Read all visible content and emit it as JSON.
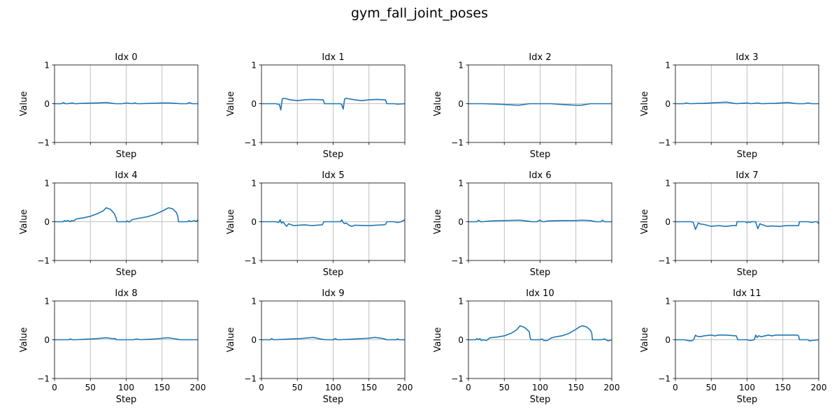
{
  "figure_title": "gym_fall_joint_poses",
  "chart_data": {
    "type": "line",
    "title": "gym_fall_joint_poses",
    "line_color": "#1f77b4",
    "grid_color": "#b0b0b0",
    "grid": "x-only",
    "xlim": [
      0,
      200
    ],
    "ylim": [
      -1,
      1
    ],
    "xticks": [
      0,
      50,
      100,
      150,
      200
    ],
    "yticks": [
      -1,
      0,
      1
    ],
    "rows": 3,
    "cols": 4,
    "panels": [
      {
        "title": "Idx 0",
        "xlabel": "Step",
        "ylabel": "Value",
        "show_xticklabels": false,
        "x": [
          0,
          10,
          12,
          15,
          18,
          22,
          25,
          28,
          30,
          40,
          60,
          72,
          85,
          95,
          100,
          108,
          112,
          115,
          120,
          150,
          160,
          175,
          185,
          188,
          192,
          195,
          200
        ],
        "y": [
          0,
          0,
          0.03,
          0,
          0,
          0.01,
          0.02,
          0,
          0,
          0.01,
          0.02,
          0.03,
          0,
          0,
          0.02,
          0,
          0.02,
          0,
          0,
          0.02,
          0.02,
          0,
          0,
          0.03,
          0,
          0,
          0
        ]
      },
      {
        "title": "Idx 1",
        "xlabel": "Step",
        "ylabel": "Value",
        "show_xticklabels": false,
        "x": [
          0,
          20,
          25,
          27,
          29,
          32,
          40,
          50,
          60,
          70,
          86,
          88,
          95,
          110,
          112,
          114,
          116,
          118,
          130,
          140,
          150,
          160,
          173,
          175,
          185,
          190,
          200
        ],
        "y": [
          0,
          0,
          -0.02,
          -0.16,
          0.13,
          0.14,
          0.1,
          0.08,
          0.1,
          0.11,
          0.1,
          0,
          0,
          0,
          -0.02,
          -0.14,
          0.12,
          0.14,
          0.1,
          0.08,
          0.1,
          0.11,
          0.1,
          0,
          0,
          -0.01,
          0
        ]
      },
      {
        "title": "Idx 2",
        "xlabel": "Step",
        "ylabel": "Value",
        "show_xticklabels": false,
        "x": [
          0,
          20,
          40,
          60,
          70,
          85,
          90,
          100,
          115,
          130,
          150,
          157,
          170,
          175,
          200
        ],
        "y": [
          0,
          0,
          -0.01,
          -0.03,
          -0.04,
          0,
          0,
          0,
          0,
          -0.02,
          -0.04,
          -0.04,
          0,
          0,
          0
        ]
      },
      {
        "title": "Idx 3",
        "xlabel": "Step",
        "ylabel": "Value",
        "show_xticklabels": false,
        "x": [
          0,
          12,
          15,
          20,
          40,
          60,
          72,
          85,
          100,
          105,
          115,
          120,
          140,
          157,
          170,
          180,
          185,
          190,
          200
        ],
        "y": [
          0,
          0,
          0.02,
          0,
          0.01,
          0.03,
          0.04,
          0,
          0.02,
          0,
          0.02,
          0,
          0.01,
          0.03,
          0,
          0,
          0.02,
          0,
          0
        ]
      },
      {
        "title": "Idx 4",
        "xlabel": "Step",
        "ylabel": "Value",
        "show_xticklabels": false,
        "x": [
          0,
          12,
          14,
          16,
          18,
          20,
          22,
          24,
          27,
          30,
          33,
          40,
          50,
          60,
          68,
          72,
          78,
          83,
          86,
          87,
          100,
          102,
          104,
          108,
          112,
          118,
          130,
          140,
          150,
          155,
          159,
          165,
          170,
          172,
          173,
          180,
          185,
          188,
          190,
          195,
          198,
          200
        ],
        "y": [
          0,
          0,
          0.03,
          0.01,
          0.03,
          0.02,
          0,
          0.03,
          0.02,
          0.07,
          0.08,
          0.1,
          0.14,
          0.21,
          0.28,
          0.36,
          0.32,
          0.22,
          0.1,
          0,
          0,
          0.02,
          -0.01,
          0.05,
          0.07,
          0.09,
          0.13,
          0.19,
          0.27,
          0.32,
          0.36,
          0.33,
          0.24,
          0.14,
          0,
          0,
          0,
          0.03,
          0,
          0.03,
          0,
          0.05
        ]
      },
      {
        "title": "Idx 5",
        "xlabel": "Step",
        "ylabel": "Value",
        "show_xticklabels": false,
        "x": [
          0,
          20,
          24,
          26,
          28,
          30,
          32,
          35,
          38,
          40,
          45,
          60,
          70,
          85,
          87,
          100,
          110,
          112,
          114,
          116,
          118,
          122,
          126,
          130,
          150,
          170,
          173,
          175,
          185,
          190,
          195,
          200
        ],
        "y": [
          0,
          0,
          -0.02,
          0.05,
          -0.04,
          0,
          -0.05,
          -0.12,
          -0.05,
          -0.07,
          -0.1,
          -0.08,
          -0.1,
          -0.08,
          0,
          0,
          0,
          0.05,
          -0.02,
          -0.05,
          -0.03,
          -0.09,
          -0.12,
          -0.09,
          -0.1,
          -0.08,
          -0.07,
          0,
          0,
          -0.02,
          0,
          0.05
        ]
      },
      {
        "title": "Idx 6",
        "xlabel": "Step",
        "ylabel": "Value",
        "show_xticklabels": false,
        "x": [
          0,
          12,
          14,
          17,
          20,
          30,
          50,
          72,
          85,
          88,
          95,
          100,
          103,
          106,
          110,
          130,
          150,
          158,
          170,
          178,
          185,
          187,
          190,
          200
        ],
        "y": [
          0,
          0,
          0.04,
          0,
          0,
          0.02,
          0.03,
          0.04,
          0.01,
          0,
          0,
          0.04,
          0,
          0,
          0.02,
          0.03,
          0.03,
          0.04,
          0.03,
          0,
          0,
          0.04,
          0,
          0
        ]
      },
      {
        "title": "Idx 7",
        "xlabel": "Step",
        "ylabel": "Value",
        "show_xticklabels": false,
        "x": [
          0,
          22,
          25,
          28,
          32,
          35,
          40,
          50,
          60,
          70,
          80,
          85,
          86,
          98,
          100,
          102,
          104,
          106,
          112,
          115,
          118,
          120,
          128,
          135,
          145,
          155,
          170,
          172,
          173,
          185,
          190,
          195,
          198,
          200
        ],
        "y": [
          0,
          0,
          -0.02,
          -0.2,
          -0.03,
          -0.06,
          -0.07,
          -0.12,
          -0.1,
          -0.12,
          -0.1,
          -0.1,
          0,
          0,
          -0.03,
          0,
          -0.02,
          0,
          0,
          -0.18,
          -0.05,
          -0.07,
          -0.12,
          -0.11,
          -0.12,
          -0.1,
          -0.1,
          -0.1,
          0,
          0,
          -0.02,
          0,
          0,
          -0.05
        ]
      },
      {
        "title": "Idx 8",
        "xlabel": "Step",
        "ylabel": "Value",
        "show_xticklabels": true,
        "x": [
          0,
          20,
          22,
          25,
          30,
          50,
          60,
          72,
          80,
          85,
          86,
          100,
          110,
          115,
          120,
          140,
          158,
          170,
          175,
          200
        ],
        "y": [
          0,
          0,
          0.02,
          0,
          0,
          0.02,
          0.03,
          0.05,
          0.03,
          0.03,
          0,
          0,
          0,
          0.02,
          0,
          0.02,
          0.05,
          0.02,
          0,
          0
        ]
      },
      {
        "title": "Idx 9",
        "xlabel": "Step",
        "ylabel": "Value",
        "show_xticklabels": true,
        "x": [
          0,
          12,
          14,
          17,
          20,
          40,
          55,
          72,
          85,
          90,
          100,
          103,
          106,
          110,
          130,
          150,
          158,
          170,
          175,
          188,
          190,
          192,
          200
        ],
        "y": [
          0,
          0,
          0.03,
          0,
          0,
          0.02,
          0.03,
          0.06,
          0.01,
          0,
          0,
          0.03,
          0,
          0,
          0.02,
          0.04,
          0.06,
          0.03,
          0,
          0,
          0.02,
          0,
          0
        ]
      },
      {
        "title": "Idx 10",
        "xlabel": "Step",
        "ylabel": "Value",
        "show_xticklabels": true,
        "x": [
          0,
          10,
          12,
          14,
          16,
          18,
          20,
          25,
          30,
          40,
          50,
          60,
          67,
          72,
          78,
          82,
          85,
          86,
          87,
          100,
          103,
          105,
          110,
          115,
          120,
          130,
          140,
          150,
          155,
          159,
          165,
          170,
          172,
          173,
          180,
          185,
          190,
          195,
          200
        ],
        "y": [
          0,
          0,
          0.03,
          0,
          0.03,
          -0.02,
          0,
          -0.02,
          0.05,
          0.07,
          0.1,
          0.17,
          0.25,
          0.36,
          0.32,
          0.26,
          0.2,
          0.06,
          0,
          0,
          0.02,
          -0.02,
          -0.02,
          0.04,
          0.07,
          0.1,
          0.16,
          0.27,
          0.33,
          0.36,
          0.33,
          0.25,
          0.18,
          0,
          0,
          0,
          0.02,
          -0.03,
          0
        ]
      },
      {
        "title": "Idx 11",
        "xlabel": "Step",
        "ylabel": "Value",
        "show_xticklabels": true,
        "x": [
          0,
          10,
          12,
          20,
          24,
          26,
          28,
          30,
          35,
          40,
          50,
          55,
          60,
          70,
          85,
          87,
          100,
          104,
          107,
          110,
          112,
          114,
          116,
          120,
          130,
          135,
          140,
          150,
          160,
          170,
          172,
          173,
          185,
          187,
          190,
          200
        ],
        "y": [
          0,
          0,
          0,
          -0.03,
          -0.02,
          0.02,
          0.12,
          0.09,
          0.08,
          0.1,
          0.12,
          0.1,
          0.12,
          0.12,
          0.1,
          0,
          0,
          -0.02,
          -0.01,
          0,
          0.12,
          0.06,
          0.1,
          0.08,
          0.12,
          0.1,
          0.12,
          0.12,
          0.12,
          0.12,
          0.1,
          0,
          0,
          -0.03,
          -0.02,
          0
        ]
      }
    ]
  }
}
